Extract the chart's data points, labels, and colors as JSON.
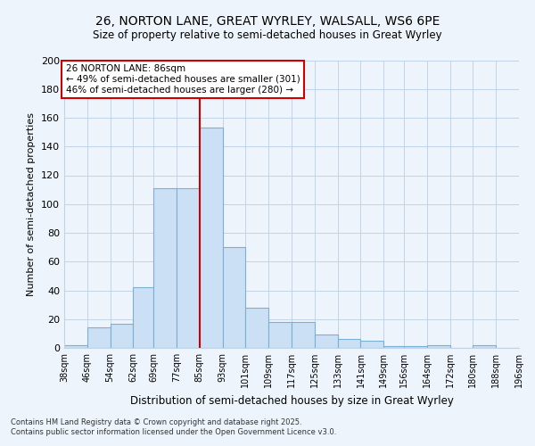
{
  "title": "26, NORTON LANE, GREAT WYRLEY, WALSALL, WS6 6PE",
  "subtitle": "Size of property relative to semi-detached houses in Great Wyrley",
  "xlabel": "Distribution of semi-detached houses by size in Great Wyrley",
  "ylabel": "Number of semi-detached properties",
  "bin_labels": [
    "38sqm",
    "46sqm",
    "54sqm",
    "62sqm",
    "69sqm",
    "77sqm",
    "85sqm",
    "93sqm",
    "101sqm",
    "109sqm",
    "117sqm",
    "125sqm",
    "133sqm",
    "141sqm",
    "149sqm",
    "156sqm",
    "164sqm",
    "172sqm",
    "180sqm",
    "188sqm",
    "196sqm"
  ],
  "bin_edges": [
    38,
    46,
    54,
    62,
    69,
    77,
    85,
    93,
    101,
    109,
    117,
    125,
    133,
    141,
    149,
    156,
    164,
    172,
    180,
    188,
    196
  ],
  "bar_heights": [
    2,
    14,
    17,
    42,
    111,
    111,
    153,
    70,
    28,
    18,
    18,
    9,
    6,
    5,
    1,
    1,
    2,
    0,
    2,
    0
  ],
  "bar_color": "#cce0f5",
  "bar_edge_color": "#7ab0d4",
  "vline_x": 85,
  "vline_color": "#cc0000",
  "annotation_title": "26 NORTON LANE: 86sqm",
  "annotation_line1": "← 49% of semi-detached houses are smaller (301)",
  "annotation_line2": "46% of semi-detached houses are larger (280) →",
  "annotation_box_color": "#ffffff",
  "annotation_box_edge_color": "#cc0000",
  "ylim": [
    0,
    200
  ],
  "yticks": [
    0,
    20,
    40,
    60,
    80,
    100,
    120,
    140,
    160,
    180,
    200
  ],
  "background_color": "#eef4fb",
  "footnote1": "Contains HM Land Registry data © Crown copyright and database right 2025.",
  "footnote2": "Contains public sector information licensed under the Open Government Licence v3.0."
}
